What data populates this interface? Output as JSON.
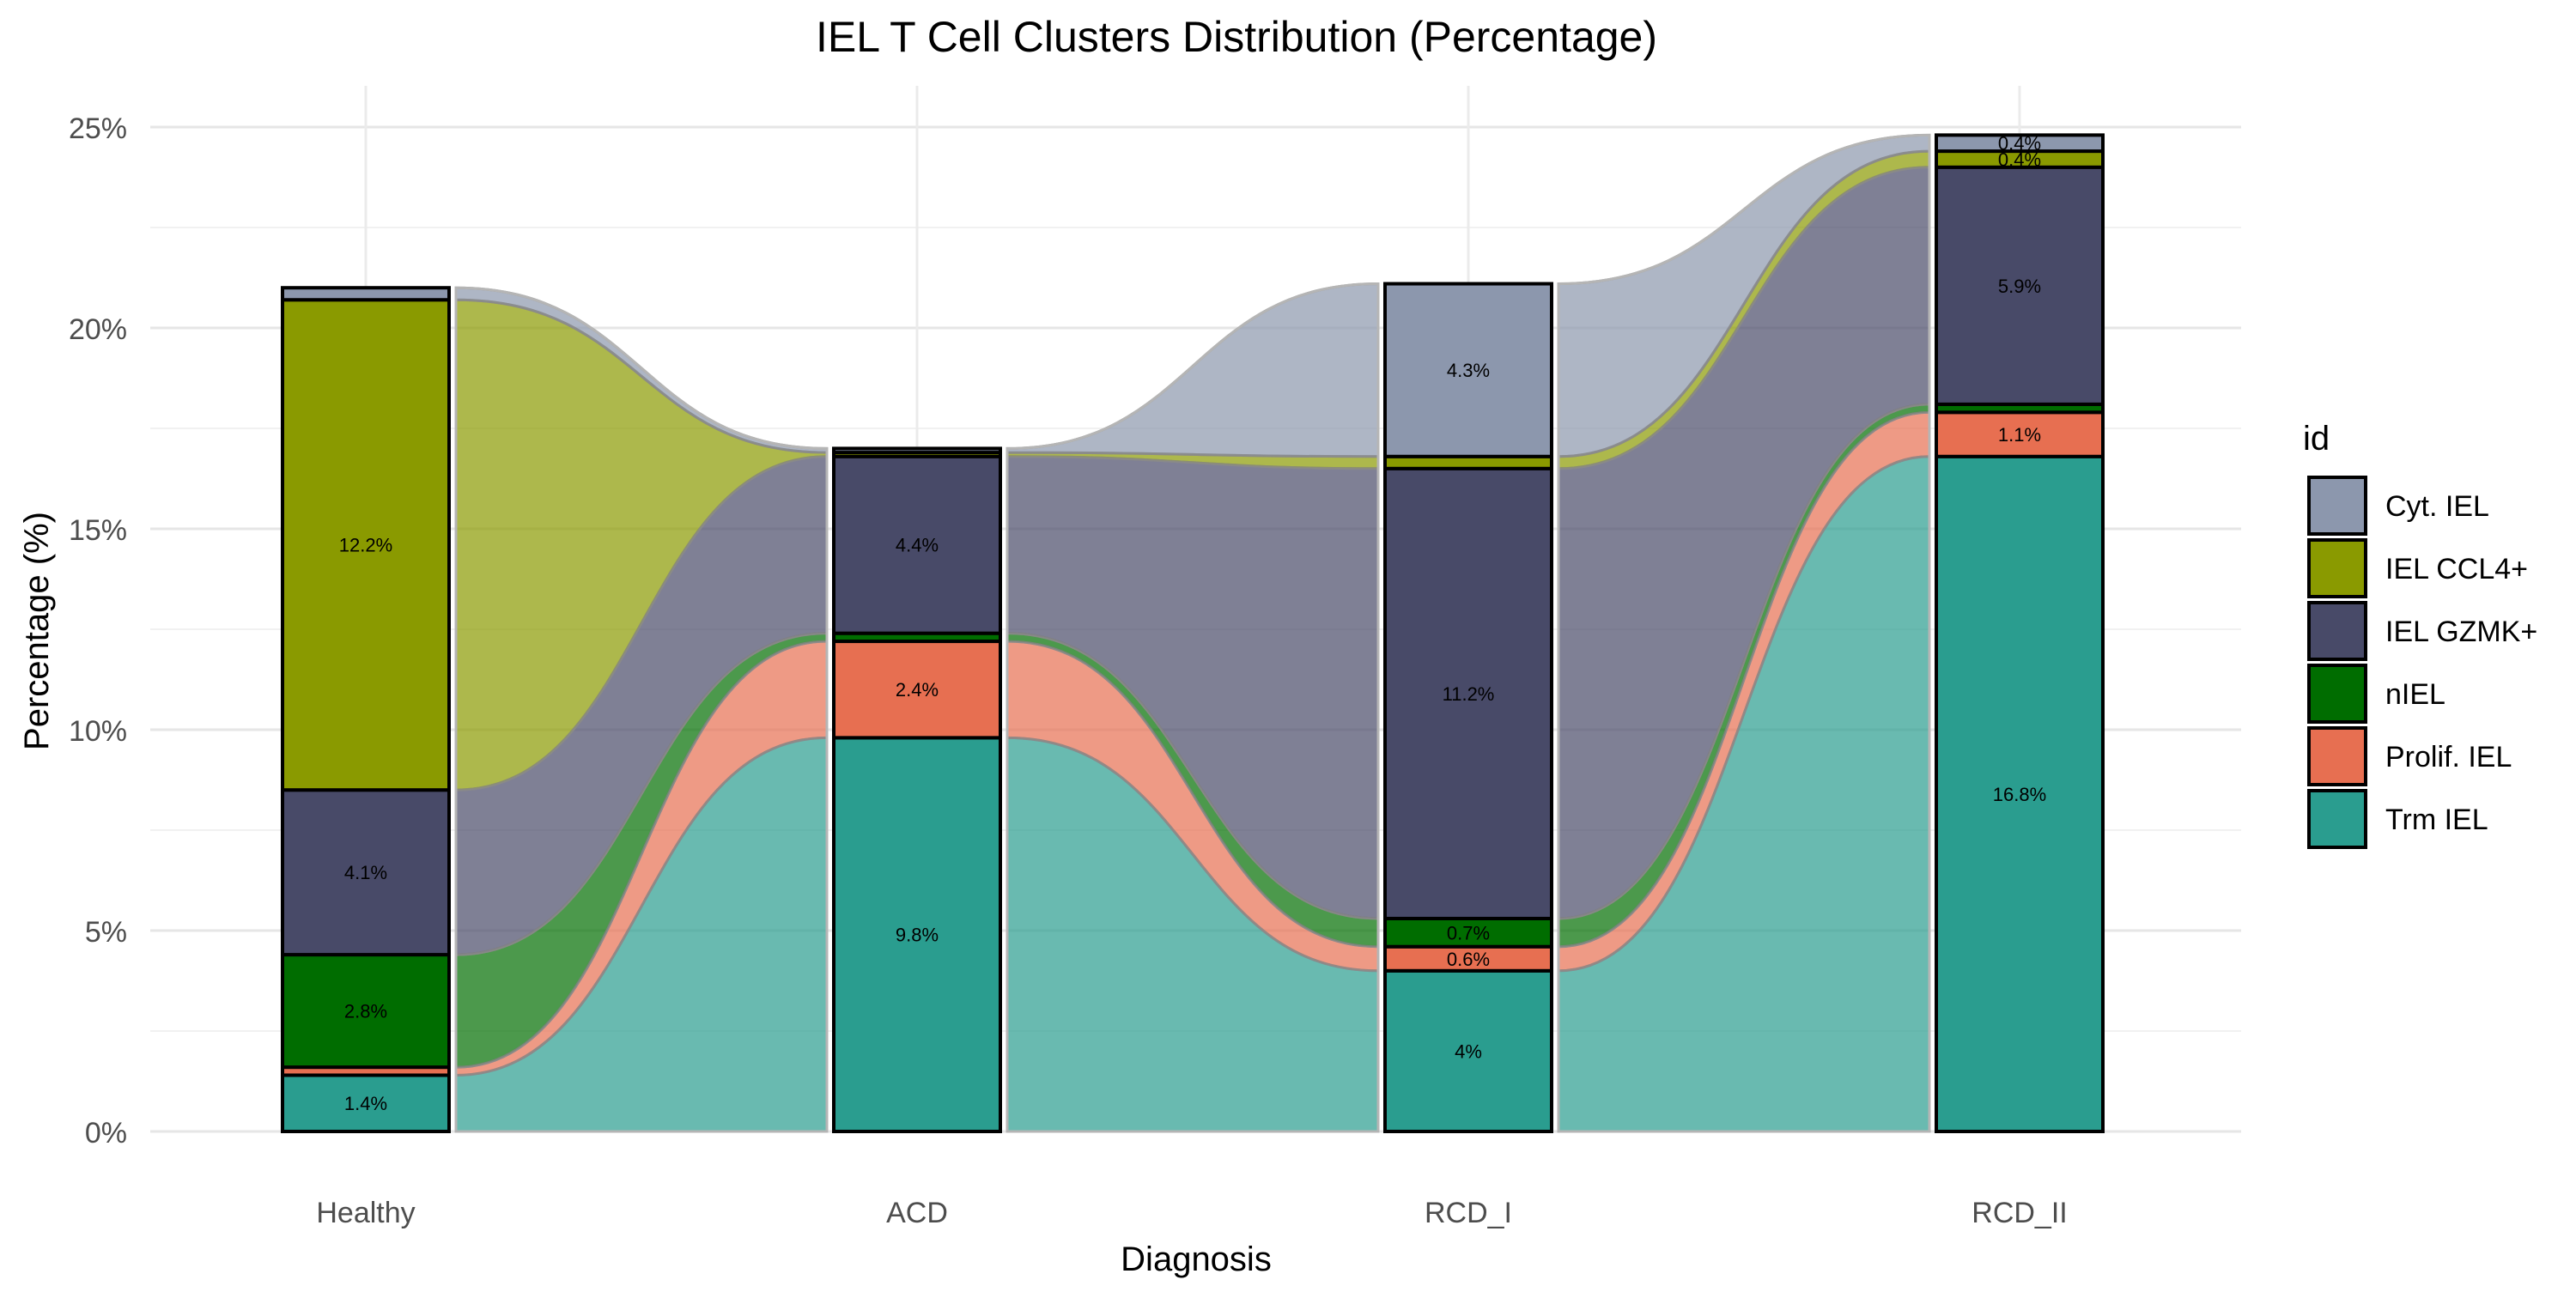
{
  "chart_data": {
    "type": "bar",
    "subtype": "stacked-bar-with-alluvial-flows",
    "title": "IEL T Cell Clusters Distribution (Percentage)",
    "xlabel": "Diagnosis",
    "ylabel": "Percentage (%)",
    "categories": [
      "Healthy",
      "ACD",
      "RCD_I",
      "RCD_II"
    ],
    "ylim": [
      0,
      25
    ],
    "yticks": [
      0,
      5,
      10,
      15,
      20,
      25
    ],
    "ytick_labels": [
      "0%",
      "5%",
      "10%",
      "15%",
      "20%",
      "25%"
    ],
    "grid": true,
    "legend_title": "id",
    "legend_position": "right",
    "series": [
      {
        "name": "Trm IEL",
        "color": "#2a9d8f",
        "values": [
          1.4,
          9.8,
          4.0,
          16.8
        ],
        "labels": [
          "1.4%",
          "9.8%",
          "4%",
          "16.8%"
        ]
      },
      {
        "name": "Prolif. IEL",
        "color": "#e76f51",
        "values": [
          0.2,
          2.4,
          0.6,
          1.1
        ],
        "labels": [
          "",
          "2.4%",
          "0.6%",
          "1.1%"
        ]
      },
      {
        "name": "nIEL",
        "color": "#006d00",
        "values": [
          2.8,
          0.2,
          0.7,
          0.2
        ],
        "labels": [
          "2.8%",
          "",
          "0.7%",
          ""
        ]
      },
      {
        "name": "IEL GZMK+",
        "color": "#484a68",
        "values": [
          4.1,
          4.4,
          11.2,
          5.9
        ],
        "labels": [
          "4.1%",
          "4.4%",
          "11.2%",
          "5.9%"
        ]
      },
      {
        "name": "IEL CCL4+",
        "color": "#8a9a00",
        "values": [
          12.2,
          0.1,
          0.3,
          0.4
        ],
        "labels": [
          "12.2%",
          "",
          "",
          "0.4%"
        ]
      },
      {
        "name": "Cyt. IEL",
        "color": "#8c97ad",
        "values": [
          0.3,
          0.1,
          4.3,
          0.4
        ],
        "labels": [
          "",
          "",
          "4.3%",
          "0.4%"
        ]
      }
    ],
    "legend_order": [
      "Cyt. IEL",
      "IEL CCL4+",
      "IEL GZMK+",
      "nIEL",
      "Prolif. IEL",
      "Trm IEL"
    ]
  }
}
